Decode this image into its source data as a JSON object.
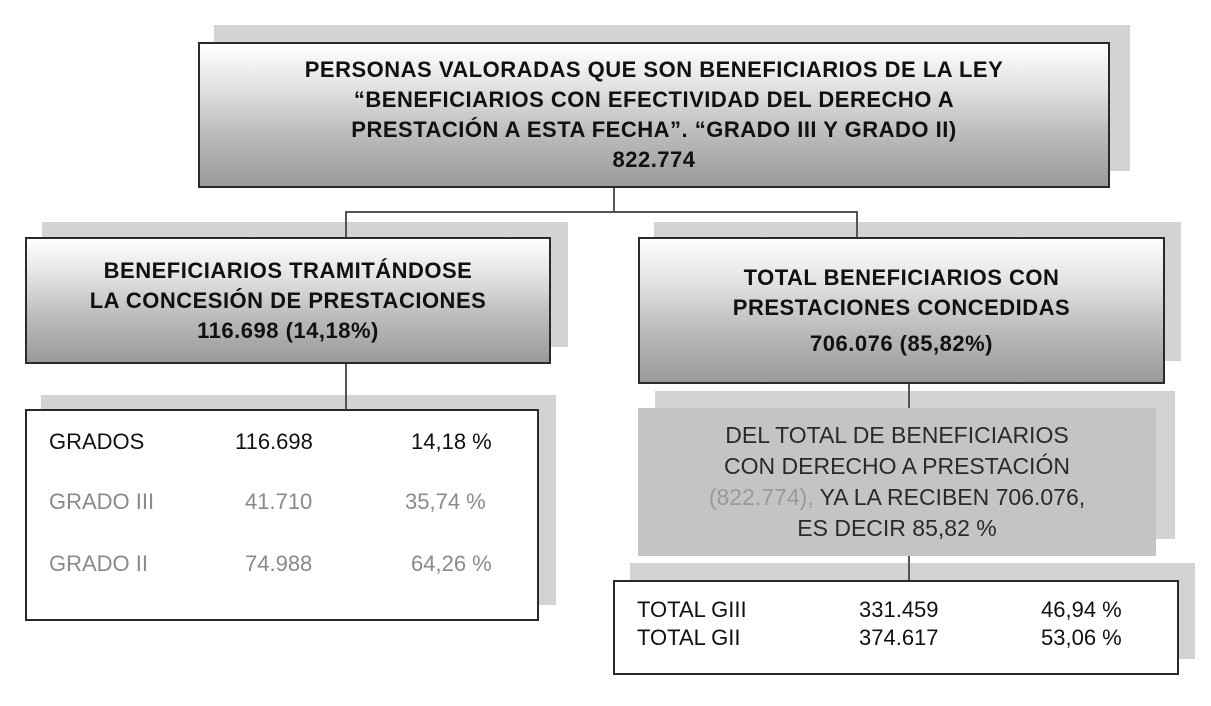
{
  "top": {
    "lines": [
      "PERSONAS VALORADAS QUE SON BENEFICIARIOS DE LA LEY",
      "“BENEFICIARIOS CON EFECTIVIDAD DEL DERECHO A",
      "PRESTACIÓN A ESTA FECHA”. “GRADO III Y GRADO II)"
    ],
    "value": "822.774"
  },
  "left": {
    "lines": [
      "BENEFICIARIOS TRAMITÁNDOSE",
      "LA CONCESIÓN DE PRESTACIONES"
    ],
    "value": "116.698 (14,18%)",
    "table": [
      {
        "label": "GRADOS",
        "count": "116.698",
        "pct": "14,18 %"
      },
      {
        "label": "GRADO III",
        "count": "41.710",
        "pct": "35,74 %"
      },
      {
        "label": "GRADO II",
        "count": "74.988",
        "pct": "64,26 %"
      }
    ]
  },
  "right": {
    "lines": [
      "TOTAL BENEFICIARIOS CON",
      "PRESTACIONES CONCEDIDAS"
    ],
    "value": "706.076 (85,82%)",
    "note": {
      "line1": "DEL TOTAL DE BENEFICIARIOS",
      "line2": "CON DERECHO A PRESTACIÓN",
      "line3_muted": "(822.774),",
      "line3_rest": " YA LA RECIBEN 706.076,",
      "line4": "ES DECIR 85,82 %"
    },
    "table": [
      {
        "label": "TOTAL GIII",
        "count": "331.459",
        "pct": "46,94 %"
      },
      {
        "label": "TOTAL GII",
        "count": "374.617",
        "pct": "53,06 %"
      }
    ]
  },
  "colors": {
    "box_border": "#2a2a2a",
    "shadow": "#d3d3d3",
    "gradient_dark": "#9a9a9a",
    "muted_text": "#8a8a8a",
    "note_background": "#c4c4c4"
  }
}
